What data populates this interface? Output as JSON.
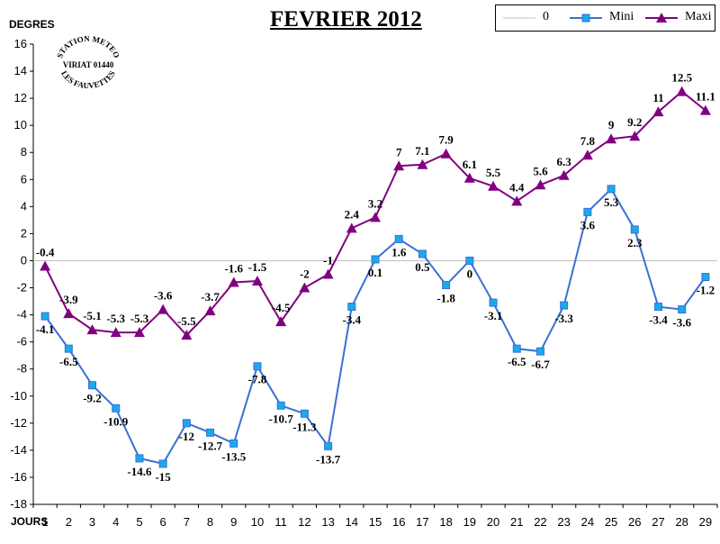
{
  "chart_data": {
    "type": "line",
    "title": "FEVRIER 2012",
    "ylabel": "DEGRES",
    "xlabel": "JOURS",
    "x": [
      1,
      2,
      3,
      4,
      5,
      6,
      7,
      8,
      9,
      10,
      11,
      12,
      13,
      14,
      15,
      16,
      17,
      18,
      19,
      20,
      21,
      22,
      23,
      24,
      25,
      26,
      27,
      28,
      29
    ],
    "ylim": [
      -18,
      16
    ],
    "yticks": [
      16,
      14,
      12,
      10,
      8,
      6,
      4,
      2,
      0,
      -2,
      -4,
      -6,
      -8,
      -10,
      -12,
      -14,
      -16,
      -18
    ],
    "grid": false,
    "legend_position": "top-right",
    "reference_line": {
      "name": "0",
      "value": 0,
      "color": "#c0c0c0"
    },
    "series": [
      {
        "name": "Mini",
        "color": "#3a6fd4",
        "marker": "square",
        "marker_color": "#19aaee",
        "values": [
          -4.1,
          -6.5,
          -9.2,
          -10.9,
          -14.6,
          -15,
          -12,
          -12.7,
          -13.5,
          -7.8,
          -10.7,
          -11.3,
          -13.7,
          -3.4,
          0.1,
          1.6,
          0.5,
          -1.8,
          0,
          -3.1,
          -6.5,
          -6.7,
          -3.3,
          3.6,
          5.3,
          2.3,
          -3.4,
          -3.6,
          -1.2
        ],
        "labels": [
          "-4.1",
          "-6.5",
          "-9.2",
          "-10.9",
          "-14.6",
          "-15",
          "-12",
          "-12.7",
          "-13.5",
          "-7.8",
          "-10.7",
          "-11.3",
          "-13.7",
          "-3.4",
          "0.1",
          "1.6",
          "0.5",
          "-1.8",
          "0",
          "-3.1",
          "-6.5",
          "-6.7",
          "-3.3",
          "3.6",
          "5.3",
          "2.3",
          "-3.4",
          "-3.6",
          "-1.2"
        ]
      },
      {
        "name": "Maxi",
        "color": "#800080",
        "marker": "triangle",
        "marker_color": "#800080",
        "values": [
          -0.4,
          -3.9,
          -5.1,
          -5.3,
          -5.3,
          -3.6,
          -5.5,
          -3.7,
          -1.6,
          -1.5,
          -4.5,
          -2,
          -1,
          2.4,
          3.2,
          7,
          7.1,
          7.9,
          6.1,
          5.5,
          4.4,
          5.6,
          6.3,
          7.8,
          9,
          9.2,
          11,
          12.5,
          11.1
        ],
        "labels": [
          "-0.4",
          "-3.9",
          "-5.1",
          "-5.3",
          "-5.3",
          "-3.6",
          "-5.5",
          "-3.7",
          "-1.6",
          "-1.5",
          "-4.5",
          "-2",
          "-1",
          "2.4",
          "3.2",
          "7",
          "7.1",
          "7.9",
          "6.1",
          "5.5",
          "4.4",
          "5.6",
          "6.3",
          "7.8",
          "9",
          "9.2",
          "11",
          "12.5",
          "11.1"
        ]
      }
    ]
  },
  "stamp": {
    "line1": "STATION METEO",
    "line2": "VIRIAT 01440",
    "line3": "LES FAUVETTES"
  }
}
